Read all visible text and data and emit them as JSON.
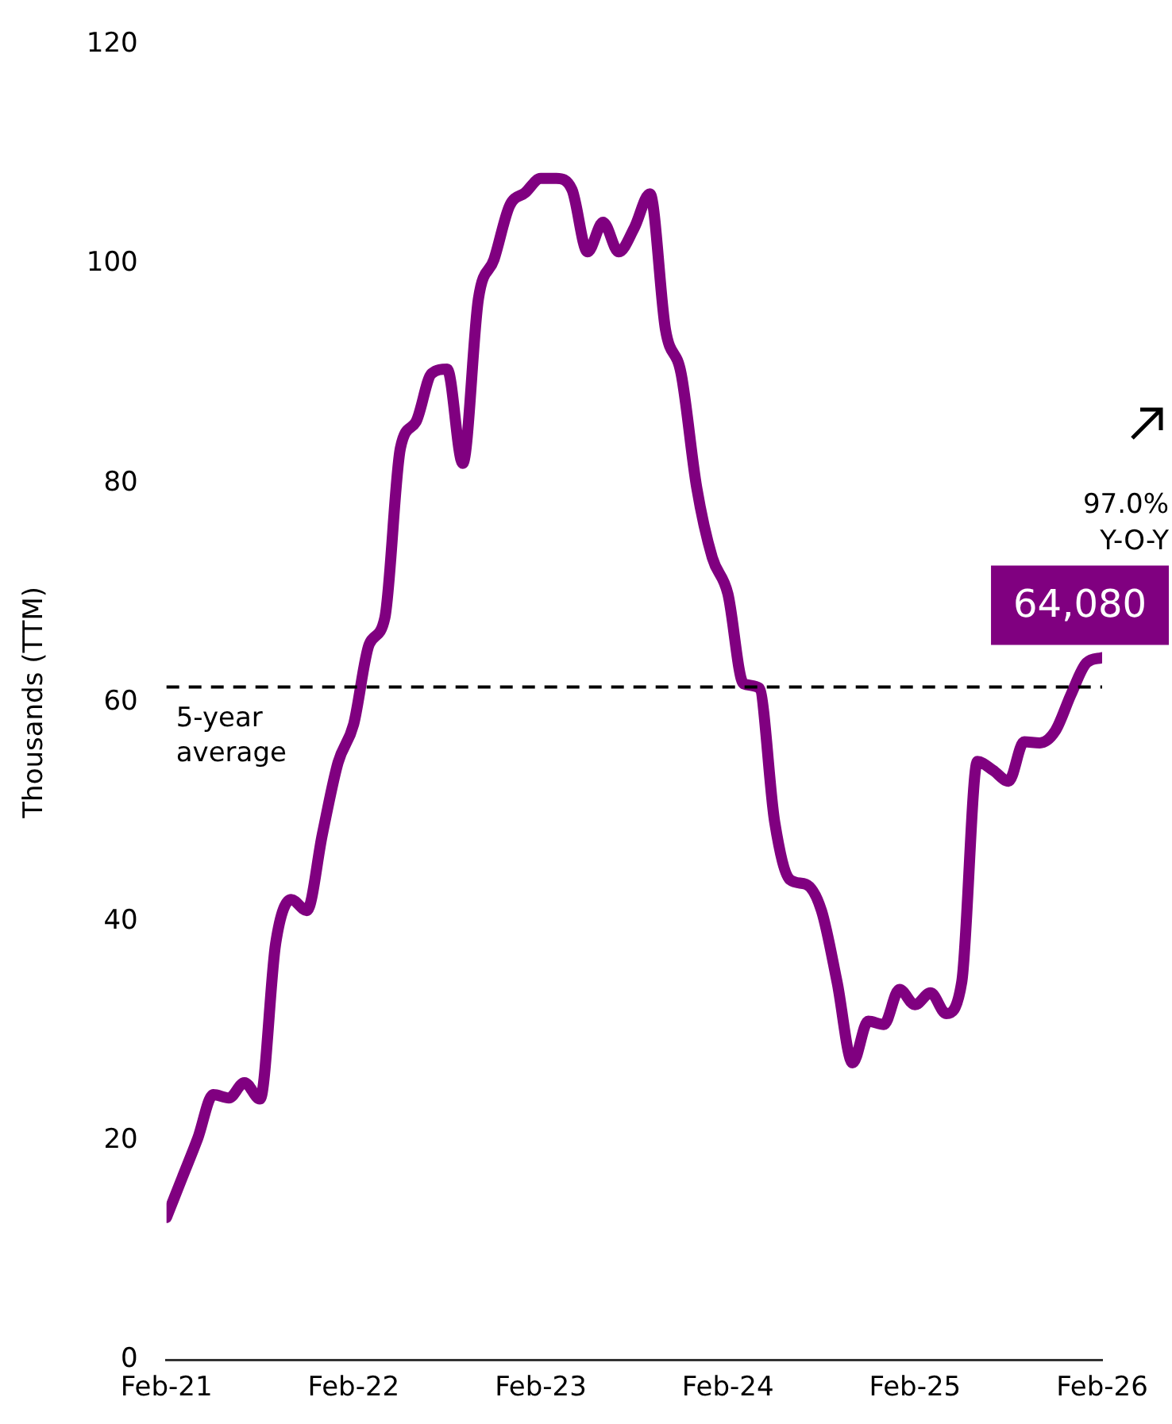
{
  "chart_data": {
    "type": "line",
    "ylabel": "Thousands (TTM)",
    "x": [
      "2021-02",
      "2021-03",
      "2021-04",
      "2021-05",
      "2021-06",
      "2021-07",
      "2021-08",
      "2021-09",
      "2021-10",
      "2021-11",
      "2021-12",
      "2022-01",
      "2022-02",
      "2022-03",
      "2022-04",
      "2022-05",
      "2022-06",
      "2022-07",
      "2022-08",
      "2022-09",
      "2022-10",
      "2022-11",
      "2022-12",
      "2023-01",
      "2023-02",
      "2023-03",
      "2023-04",
      "2023-05",
      "2023-06",
      "2023-07",
      "2023-08",
      "2023-09",
      "2023-10",
      "2023-11",
      "2023-12",
      "2024-01",
      "2024-02",
      "2024-03",
      "2024-04",
      "2024-05",
      "2024-06",
      "2024-07",
      "2024-08",
      "2024-09",
      "2024-10",
      "2024-11",
      "2024-12",
      "2025-01",
      "2025-02",
      "2025-03",
      "2025-04",
      "2025-05",
      "2025-06",
      "2025-07",
      "2025-08",
      "2025-09",
      "2025-10",
      "2025-11",
      "2025-12",
      "2026-01",
      "2026-02"
    ],
    "series": [
      {
        "color": "#800080",
        "values": [
          13.0,
          16.6,
          20.2,
          24.2,
          23.9,
          25.3,
          23.8,
          38,
          42,
          41,
          48,
          54.5,
          58,
          65.3,
          67.7,
          83.2,
          85.6,
          90,
          90.4,
          81.8,
          96.8,
          100.4,
          105.3,
          106.5,
          107.8,
          107.8,
          106.8,
          101.1,
          103.8,
          101.1,
          103.3,
          106.4,
          94,
          90,
          79.6,
          73.2,
          69.9,
          61.7,
          61.3,
          49.1,
          43.8,
          43.4,
          41,
          34.5,
          27.1,
          30.9,
          30.6,
          33.8,
          32.4,
          33.5,
          31.6,
          34.5,
          54.6,
          53.8,
          52.8,
          56.4,
          56.3,
          57.4,
          60.7,
          63.6,
          64.08
        ]
      }
    ],
    "xlim": [
      "2021-02",
      "2026-02"
    ],
    "xticks": [
      {
        "value": "2021-02",
        "label": "Feb-21"
      },
      {
        "value": "2022-02",
        "label": "Feb-22"
      },
      {
        "value": "2023-02",
        "label": "Feb-23"
      },
      {
        "value": "2024-02",
        "label": "Feb-24"
      },
      {
        "value": "2025-02",
        "label": "Feb-25"
      },
      {
        "value": "2026-02",
        "label": "Feb-26"
      }
    ],
    "ylim": [
      0,
      120
    ],
    "yticks": [
      0,
      20,
      40,
      60,
      80,
      100,
      120
    ],
    "grid": false,
    "legend": false,
    "marker": "none",
    "line_style": "solid",
    "ref_lines": [
      {
        "axis": "y",
        "value": 61.4,
        "label": "5-year average",
        "color": "#000000",
        "line_style": "dashed"
      }
    ],
    "annotations": [
      {
        "text": "64,080",
        "x": "2026-02",
        "y": 64.08
      },
      "97.0% Y-O-Y"
    ]
  }
}
